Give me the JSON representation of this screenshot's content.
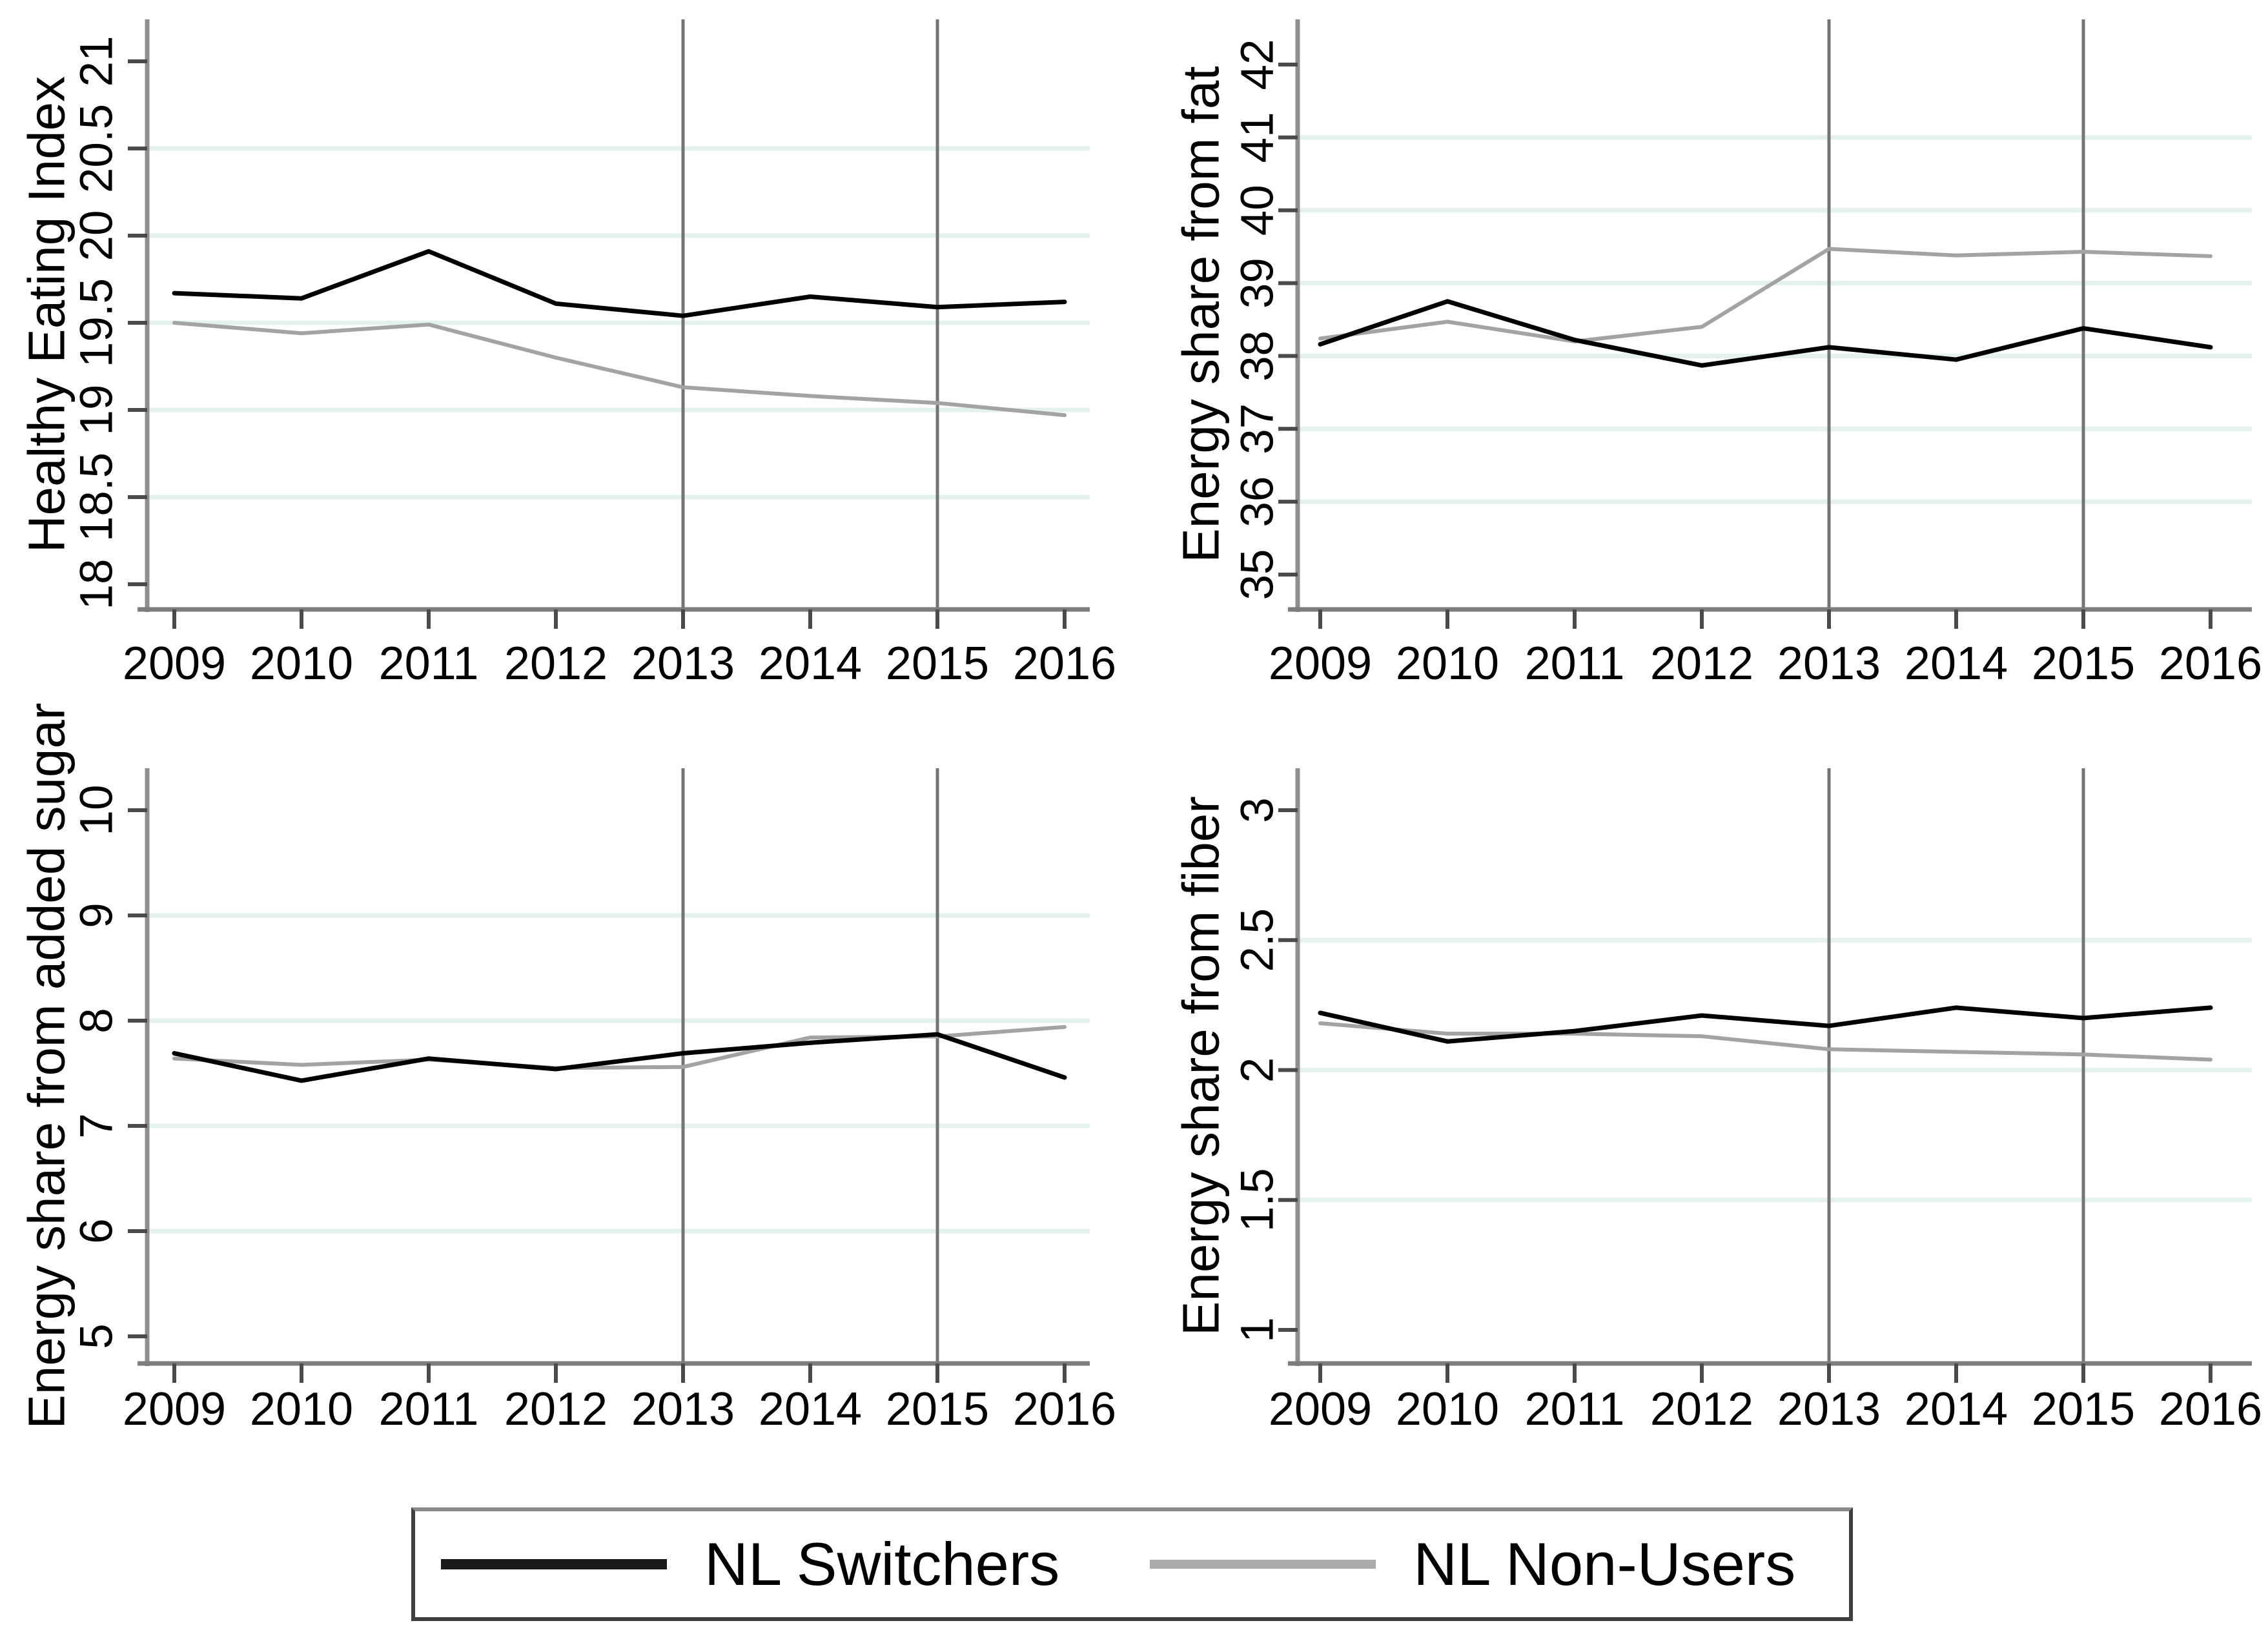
{
  "figure": {
    "background": "#ffffff",
    "years": [
      2009,
      2010,
      2011,
      2012,
      2013,
      2014,
      2015,
      2016
    ],
    "xtick_labels": [
      "2009",
      "2010",
      "2011",
      "2012",
      "2013",
      "2014",
      "2015",
      "2016"
    ],
    "reference_years": [
      2013,
      2015
    ],
    "colors": {
      "switchers_line": "#000000",
      "nonusers_line": "#a3a3a3",
      "gridline": "#e3f1ef",
      "refline": "#757575",
      "y_spine": "#8f8f8f",
      "x_spine": "#7d7d7d",
      "tick": "#4a4a4a",
      "text": "#000000",
      "legend_border": "#3f3f3f"
    }
  },
  "chart_data": [
    {
      "type": "line",
      "ylabel": "Healthy Eating Index",
      "ylim": [
        18,
        21
      ],
      "ytick_labels": [
        "18",
        "18.5",
        "19",
        "19.5",
        "20",
        "20.5",
        "21"
      ],
      "x": [
        2009,
        2010,
        2011,
        2012,
        2013,
        2014,
        2015,
        2016
      ],
      "grid": "horizontal",
      "reference_lines_x": [
        2013,
        2015
      ],
      "series": [
        {
          "name": "NL Switchers",
          "values": [
            19.67,
            19.64,
            19.91,
            19.61,
            19.54,
            19.65,
            19.59,
            19.62
          ]
        },
        {
          "name": "NL Non-Users",
          "values": [
            19.5,
            19.44,
            19.49,
            19.3,
            19.13,
            19.08,
            19.04,
            18.97
          ]
        }
      ]
    },
    {
      "type": "line",
      "ylabel": "Energy share from fat",
      "ylim": [
        35,
        42
      ],
      "ytick_labels": [
        "35",
        "36",
        "37",
        "38",
        "39",
        "40",
        "41",
        "42"
      ],
      "x": [
        2009,
        2010,
        2011,
        2012,
        2013,
        2014,
        2015,
        2016
      ],
      "grid": "horizontal",
      "reference_lines_x": [
        2013,
        2015
      ],
      "series": [
        {
          "name": "NL Switchers",
          "values": [
            38.16,
            38.75,
            38.22,
            37.87,
            38.12,
            37.95,
            38.38,
            38.12
          ]
        },
        {
          "name": "NL Non-Users",
          "values": [
            38.24,
            38.47,
            38.2,
            38.4,
            39.47,
            39.38,
            39.43,
            39.37
          ]
        }
      ]
    },
    {
      "type": "line",
      "ylabel": "Energy share from added sugar",
      "ylim": [
        5,
        10
      ],
      "ytick_labels": [
        "5",
        "6",
        "7",
        "8",
        "9",
        "10"
      ],
      "x": [
        2009,
        2010,
        2011,
        2012,
        2013,
        2014,
        2015,
        2016
      ],
      "grid": "horizontal",
      "reference_lines_x": [
        2013,
        2015
      ],
      "series": [
        {
          "name": "NL Switchers",
          "values": [
            7.69,
            7.43,
            7.64,
            7.54,
            7.69,
            7.79,
            7.87,
            7.46
          ]
        },
        {
          "name": "NL Non-Users",
          "values": [
            7.64,
            7.58,
            7.63,
            7.55,
            7.56,
            7.84,
            7.85,
            7.94
          ]
        }
      ]
    },
    {
      "type": "line",
      "ylabel": "Energy share from fiber",
      "ylim": [
        1,
        3
      ],
      "ytick_labels": [
        "1",
        "1.5",
        "2",
        "2.5",
        "3"
      ],
      "x": [
        2009,
        2010,
        2011,
        2012,
        2013,
        2014,
        2015,
        2016
      ],
      "grid": "horizontal",
      "reference_lines_x": [
        2013,
        2015
      ],
      "series": [
        {
          "name": "NL Switchers",
          "values": [
            2.22,
            2.11,
            2.15,
            2.21,
            2.17,
            2.24,
            2.2,
            2.24
          ]
        },
        {
          "name": "NL Non-Users",
          "values": [
            2.18,
            2.14,
            2.14,
            2.13,
            2.08,
            2.07,
            2.06,
            2.04
          ]
        }
      ]
    }
  ],
  "legend": {
    "position": "bottom-center",
    "items": [
      {
        "label": "NL Switchers",
        "color": "#1a1a1a",
        "sample_thickness": 16
      },
      {
        "label": "NL Non-Users",
        "color": "#ababab",
        "sample_thickness": 14
      }
    ]
  }
}
